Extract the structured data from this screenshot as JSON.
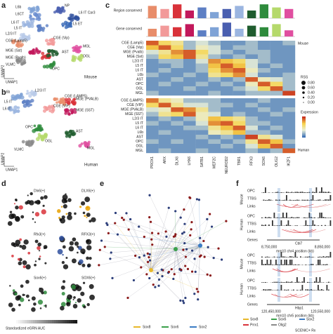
{
  "panel_labels": [
    "a",
    "b",
    "c",
    "d",
    "e",
    "f"
  ],
  "umap_mouse": {
    "species": "Mouse",
    "x_label": "UMAP1",
    "y_label": "UMAP2",
    "clusters": [
      {
        "name": "NP",
        "color": "#4a5fb0"
      },
      {
        "name": "L6b",
        "color": "#7fa3d6"
      },
      {
        "name": "L6CT",
        "color": "#6b8fd0"
      },
      {
        "name": "L6 IT Car3",
        "color": "#2e4f9e"
      },
      {
        "name": "L6 IT",
        "color": "#9bb5e0"
      },
      {
        "name": "L5 IT",
        "color": "#5d7fc4"
      },
      {
        "name": "L2/3 IT",
        "color": "#b9cbe9"
      },
      {
        "name": "L5 ET",
        "color": "#3a6ab8"
      },
      {
        "name": "CGE (Vip)",
        "color": "#f29a9a"
      },
      {
        "name": "CGE (Lamp5)",
        "color": "#e88d6a"
      },
      {
        "name": "MGE (Sst)",
        "color": "#c2185b"
      },
      {
        "name": "MGE (Pvalb)",
        "color": "#d9323a"
      },
      {
        "name": "VLMC",
        "color": "#8a8a8a"
      },
      {
        "name": "OPC",
        "color": "#2e8b3c"
      },
      {
        "name": "MGL",
        "color": "#e04fa0"
      },
      {
        "name": "OGL",
        "color": "#b5d96b"
      },
      {
        "name": "AST",
        "color": "#1f5c2e"
      }
    ]
  },
  "umap_human": {
    "species": "Human",
    "x_label": "UMAP1",
    "y_label": "UMAP2",
    "clusters": [
      {
        "name": "L6b",
        "color": "#7fa3d6"
      },
      {
        "name": "L5 IT",
        "color": "#5d7fc4"
      },
      {
        "name": "L6 IT",
        "color": "#9bb5e0"
      },
      {
        "name": "L2/3 IT",
        "color": "#b9cbe9"
      },
      {
        "name": "CGE (LAMP5)",
        "color": "#e88d6a"
      },
      {
        "name": "CGE (VIP)",
        "color": "#f29a9a"
      },
      {
        "name": "MGE (PVALB)",
        "color": "#d9323a"
      },
      {
        "name": "MGE (SST)",
        "color": "#c2185b"
      },
      {
        "name": "OPC",
        "color": "#2e8b3c"
      },
      {
        "name": "OGL",
        "color": "#b5d96b"
      },
      {
        "name": "AST",
        "color": "#1f5c2e"
      },
      {
        "name": "MGL",
        "color": "#e04fa0"
      },
      {
        "name": "VLMC",
        "color": "#8a8a8a"
      }
    ]
  },
  "chart_data": {
    "type": "heatmap",
    "columns": [
      "PROX1",
      "ARX",
      "DLX6",
      "LHX6",
      "SATB1",
      "MEF2C",
      "NEUROD2",
      "TBR1",
      "RFX3",
      "SOX6",
      "OLIG2",
      "IKZF1"
    ],
    "column_colors": [
      "#e88d6a",
      "#f29a9a",
      "#d9323a",
      "#c2185b",
      "#5d7fc4",
      "#7fa3d6",
      "#4a5fb0",
      "#9bb5e0",
      "#1f5c2e",
      "#2e8b3c",
      "#b5d96b",
      "#e04fa0"
    ],
    "top_bars": [
      {
        "label": "Region conserved",
        "values": [
          0.8,
          0.6,
          0.9,
          0.5,
          0.7,
          0.4,
          0.6,
          0.8,
          0.5,
          0.9,
          0.7,
          0.6
        ]
      },
      {
        "label": "Gene conserved",
        "values": [
          0.5,
          0.7,
          0.6,
          0.8,
          0.4,
          0.6,
          0.9,
          0.5,
          0.7,
          0.6,
          0.8,
          0.4
        ]
      }
    ],
    "ylim": [
      0,
      1
    ],
    "mouse": {
      "label": "Mouse",
      "rows": [
        "CGE (Lamp5)",
        "CGE (Vip)",
        "MGE (Pvalb)",
        "MGE (Sst)",
        "L2/3 IT",
        "L5 IT",
        "L6 IT",
        "L6b",
        "AST",
        "OPC",
        "OGL",
        "MGL"
      ],
      "row_colors": [
        "#e88d6a",
        "#f29a9a",
        "#d9323a",
        "#c2185b",
        "#b9cbe9",
        "#5d7fc4",
        "#9bb5e0",
        "#7fa3d6",
        "#1f5c2e",
        "#2e8b3c",
        "#b5d96b",
        "#e04fa0"
      ],
      "values": [
        [
          0.9,
          0.6,
          0.5,
          0.2,
          0.3,
          0.2,
          0.1,
          0.1,
          0.2,
          0.1,
          0.1,
          0.2
        ],
        [
          0.7,
          0.9,
          0.6,
          0.2,
          0.4,
          0.3,
          0.1,
          0.2,
          0.2,
          0.1,
          0.1,
          0.1
        ],
        [
          0.3,
          0.5,
          0.8,
          0.9,
          0.6,
          0.3,
          0.2,
          0.1,
          0.2,
          0.2,
          0.1,
          0.1
        ],
        [
          0.2,
          0.6,
          0.7,
          0.9,
          0.5,
          0.2,
          0.1,
          0.2,
          0.1,
          0.2,
          0.1,
          0.1
        ],
        [
          0.1,
          0.2,
          0.2,
          0.1,
          0.3,
          0.8,
          0.7,
          0.6,
          0.3,
          0.2,
          0.1,
          0.1
        ],
        [
          0.1,
          0.1,
          0.2,
          0.1,
          0.2,
          0.7,
          0.9,
          0.7,
          0.3,
          0.1,
          0.2,
          0.1
        ],
        [
          0.1,
          0.2,
          0.1,
          0.1,
          0.2,
          0.6,
          0.8,
          0.9,
          0.4,
          0.2,
          0.1,
          0.1
        ],
        [
          0.2,
          0.1,
          0.1,
          0.2,
          0.1,
          0.5,
          0.6,
          0.8,
          0.3,
          0.1,
          0.1,
          0.2
        ],
        [
          0.1,
          0.1,
          0.2,
          0.1,
          0.1,
          0.2,
          0.1,
          0.2,
          0.9,
          0.4,
          0.3,
          0.2
        ],
        [
          0.1,
          0.2,
          0.1,
          0.1,
          0.2,
          0.1,
          0.2,
          0.1,
          0.4,
          0.9,
          0.6,
          0.2
        ],
        [
          0.1,
          0.1,
          0.1,
          0.2,
          0.1,
          0.1,
          0.1,
          0.2,
          0.3,
          0.6,
          0.9,
          0.2
        ],
        [
          0.2,
          0.1,
          0.1,
          0.1,
          0.1,
          0.2,
          0.1,
          0.1,
          0.2,
          0.2,
          0.2,
          0.95
        ]
      ]
    },
    "human": {
      "label": "Human",
      "rows": [
        "CGE (LAMP5)",
        "CGE (VIP)",
        "MGE (PVALB)",
        "MGE (SST)",
        "L2/3 IT",
        "L5 IT",
        "L6 IT",
        "L6b",
        "AST",
        "OPC",
        "OGL",
        "MGL"
      ],
      "row_colors": [
        "#e88d6a",
        "#f29a9a",
        "#d9323a",
        "#c2185b",
        "#b9cbe9",
        "#5d7fc4",
        "#9bb5e0",
        "#7fa3d6",
        "#1f5c2e",
        "#2e8b3c",
        "#b5d96b",
        "#e04fa0"
      ],
      "values": [
        [
          0.85,
          0.5,
          0.4,
          0.2,
          0.2,
          0.2,
          0.1,
          0.1,
          0.1,
          0.2,
          0.1,
          0.1
        ],
        [
          0.6,
          0.9,
          0.5,
          0.3,
          0.3,
          0.2,
          0.2,
          0.1,
          0.2,
          0.1,
          0.1,
          0.1
        ],
        [
          0.3,
          0.4,
          0.9,
          0.8,
          0.5,
          0.2,
          0.1,
          0.1,
          0.1,
          0.2,
          0.1,
          0.2
        ],
        [
          0.2,
          0.5,
          0.6,
          0.9,
          0.4,
          0.3,
          0.1,
          0.2,
          0.1,
          0.1,
          0.2,
          0.1
        ],
        [
          0.1,
          0.2,
          0.1,
          0.2,
          0.4,
          0.7,
          0.6,
          0.5,
          0.2,
          0.1,
          0.1,
          0.1
        ],
        [
          0.2,
          0.1,
          0.2,
          0.1,
          0.3,
          0.8,
          0.9,
          0.6,
          0.2,
          0.2,
          0.1,
          0.1
        ],
        [
          0.1,
          0.1,
          0.1,
          0.2,
          0.2,
          0.5,
          0.7,
          0.9,
          0.3,
          0.1,
          0.2,
          0.1
        ],
        [
          0.1,
          0.2,
          0.1,
          0.1,
          0.1,
          0.4,
          0.5,
          0.7,
          0.2,
          0.2,
          0.1,
          0.1
        ],
        [
          0.1,
          0.1,
          0.1,
          0.1,
          0.2,
          0.1,
          0.2,
          0.1,
          0.95,
          0.5,
          0.3,
          0.1
        ],
        [
          0.2,
          0.1,
          0.2,
          0.1,
          0.1,
          0.2,
          0.1,
          0.2,
          0.5,
          0.9,
          0.7,
          0.2
        ],
        [
          0.1,
          0.1,
          0.1,
          0.1,
          0.1,
          0.1,
          0.2,
          0.1,
          0.3,
          0.7,
          0.9,
          0.1
        ],
        [
          0.1,
          0.2,
          0.1,
          0.1,
          0.2,
          0.1,
          0.1,
          0.1,
          0.2,
          0.1,
          0.2,
          0.9
        ]
      ]
    },
    "clim": [
      0,
      1
    ],
    "rss_label": "RSS",
    "rss_ticks": [
      {
        "value": 0.8,
        "label": "0.80"
      },
      {
        "value": 0.6,
        "label": "0.60"
      },
      {
        "value": 0.4,
        "label": "0.40"
      },
      {
        "value": 0.2,
        "label": "0.20"
      },
      {
        "value": 0,
        "label": "0.00"
      }
    ],
    "expression_label": "Expression"
  },
  "egrn": {
    "panels": [
      "Dlx6(+)",
      "DLX6(+)",
      "Rfx3(+)",
      "RFX3(+)",
      "Sox6(+)",
      "SOX6(+)"
    ],
    "panel_colors": [
      "#d9323a",
      "#e8a000",
      "#d9323a",
      "#2e4f9e",
      "#2e8b3c",
      "#2e8b3c"
    ],
    "colorbar_label": "Standardized eGRN AUC"
  },
  "network": {
    "legend": [
      {
        "name": "Sox8",
        "color": "#e8b82a"
      },
      {
        "name": "Sox6",
        "color": "#3aa04a"
      },
      {
        "name": "Sox2",
        "color": "#3b7cc4"
      }
    ]
  },
  "tracks": {
    "species": [
      "Mouse",
      "Human"
    ],
    "track_labels": [
      "OPC",
      "TTBS",
      "Links"
    ],
    "genes_label": "Genes",
    "loci": [
      {
        "axis": "mm10 chr4 position (kb)",
        "ticks": [
          "8,750,000",
          "8,850,000"
        ],
        "gene": "Cbl7"
      },
      {
        "axis": "mm10 chr5 position (kb)",
        "ticks": [
          "120,450,000",
          "120,550,000"
        ],
        "gene": "Hbp1"
      }
    ],
    "legend": [
      {
        "name": "Sox8",
        "color": "#e8b82a"
      },
      {
        "name": "Sox6",
        "color": "#3aa04a"
      },
      {
        "name": "Sox2",
        "color": "#3b7cc4"
      },
      {
        "name": "Prrx1",
        "color": "#d9323a"
      },
      {
        "name": "Olig2",
        "color": "#8a8a8a"
      }
    ],
    "footer": "SCENIC+ Rx"
  }
}
